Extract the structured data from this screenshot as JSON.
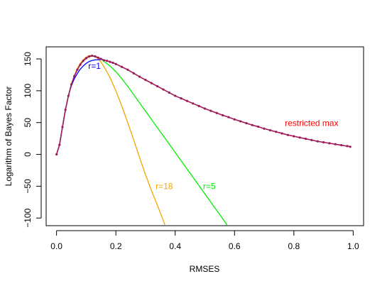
{
  "chart_data": {
    "type": "line",
    "xlabel": "RMSES",
    "ylabel": "Logarithm of Bayes Factor",
    "xlim": [
      -0.035,
      1.035
    ],
    "ylim": [
      -112,
      169
    ],
    "x_ticks": [
      0.0,
      0.2,
      0.4,
      0.6,
      0.8,
      1.0
    ],
    "x_tick_labels": [
      "0.0",
      "0.2",
      "0.4",
      "0.6",
      "0.8",
      "1.0"
    ],
    "y_ticks": [
      -100,
      -50,
      0,
      50,
      100,
      150
    ],
    "y_tick_labels": [
      "−100",
      "−50",
      "0",
      "50",
      "100",
      "150"
    ],
    "grid": false,
    "series": [
      {
        "name": "restricted max",
        "color": "#9E1A5A",
        "markers": true,
        "x": [
          0.0,
          0.01,
          0.02,
          0.03,
          0.04,
          0.05,
          0.06,
          0.07,
          0.08,
          0.09,
          0.1,
          0.11,
          0.12,
          0.13,
          0.14,
          0.15,
          0.16,
          0.17,
          0.18,
          0.19,
          0.2,
          0.22,
          0.24,
          0.26,
          0.28,
          0.3,
          0.32,
          0.34,
          0.36,
          0.38,
          0.4,
          0.42,
          0.44,
          0.46,
          0.48,
          0.5,
          0.52,
          0.54,
          0.56,
          0.58,
          0.6,
          0.62,
          0.64,
          0.66,
          0.68,
          0.7,
          0.72,
          0.74,
          0.76,
          0.78,
          0.8,
          0.82,
          0.84,
          0.86,
          0.88,
          0.9,
          0.92,
          0.94,
          0.96,
          0.98,
          0.99
        ],
        "y": [
          0.0,
          15.0,
          43.0,
          70.0,
          92.0,
          110.0,
          123.0,
          133.0,
          141.0,
          147.0,
          151.0,
          154.0,
          155.0,
          154.0,
          152.0,
          150.0,
          148.0,
          147.0,
          145.5,
          144.0,
          142.0,
          137.5,
          133.0,
          127.5,
          122.0,
          117.0,
          112.0,
          107.0,
          102.0,
          97.0,
          92.0,
          88.0,
          84.0,
          80.0,
          76.0,
          72.0,
          68.5,
          65.0,
          61.5,
          58.5,
          55.0,
          52.0,
          49.0,
          46.0,
          43.5,
          40.5,
          38.0,
          35.5,
          33.0,
          30.5,
          28.5,
          26.5,
          24.5,
          22.5,
          20.5,
          19.0,
          17.5,
          16.0,
          14.5,
          13.0,
          12.0
        ]
      },
      {
        "name": "r=1",
        "color": "#0000FF",
        "x": [
          0.0,
          0.01,
          0.02,
          0.03,
          0.04,
          0.05,
          0.06,
          0.07,
          0.08,
          0.09,
          0.1,
          0.11,
          0.12,
          0.13,
          0.14,
          0.15
        ],
        "y": [
          0.0,
          15.0,
          43.0,
          70.0,
          92.0,
          108.0,
          119.0,
          127.0,
          134.0,
          139.0,
          143.0,
          146.0,
          147.5,
          148.5,
          148.8,
          149.0
        ]
      },
      {
        "name": "r=5",
        "color": "#00EE00",
        "x": [
          0.0,
          0.01,
          0.02,
          0.03,
          0.04,
          0.05,
          0.06,
          0.07,
          0.08,
          0.09,
          0.1,
          0.11,
          0.12,
          0.13,
          0.14,
          0.15,
          0.16,
          0.18,
          0.2,
          0.22,
          0.24,
          0.26,
          0.28,
          0.3,
          0.32,
          0.34,
          0.36,
          0.38,
          0.4,
          0.42,
          0.44,
          0.46,
          0.48,
          0.5,
          0.52,
          0.54,
          0.56,
          0.575
        ],
        "y": [
          0.0,
          15.0,
          43.0,
          70.0,
          92.0,
          110.0,
          123.0,
          133.0,
          141.0,
          147.0,
          151.0,
          153.5,
          154.5,
          154.0,
          152.5,
          150.0,
          146.0,
          139.0,
          130.0,
          119.0,
          107.0,
          94.0,
          81.0,
          68.0,
          55.0,
          42.0,
          29.0,
          16.0,
          3.0,
          -10.0,
          -23.0,
          -36.0,
          -49.0,
          -62.0,
          -75.0,
          -88.0,
          -101.0,
          -111.0
        ]
      },
      {
        "name": "r=18",
        "color": "#F5A500",
        "x": [
          0.0,
          0.01,
          0.02,
          0.03,
          0.04,
          0.05,
          0.06,
          0.07,
          0.08,
          0.09,
          0.1,
          0.11,
          0.12,
          0.13,
          0.14,
          0.15,
          0.16,
          0.18,
          0.2,
          0.22,
          0.24,
          0.26,
          0.28,
          0.3,
          0.32,
          0.34,
          0.36,
          0.365
        ],
        "y": [
          0.0,
          15.0,
          43.0,
          70.0,
          92.0,
          110.0,
          124.0,
          135.0,
          143.0,
          149.0,
          153.0,
          155.0,
          155.5,
          154.0,
          150.5,
          145.0,
          138.0,
          121.0,
          100.0,
          76.0,
          50.0,
          23.0,
          -5.0,
          -32.0,
          -57.0,
          -80.0,
          -104.0,
          -111.0
        ]
      }
    ],
    "annotations": [
      {
        "text": "r=1",
        "x": 0.128,
        "y": 138,
        "color": "#0000FF"
      },
      {
        "text": "r=18",
        "x": 0.363,
        "y": -51,
        "color": "#F5A500"
      },
      {
        "text": "r=5",
        "x": 0.515,
        "y": -51,
        "color": "#00EE00"
      },
      {
        "text": "restricted max",
        "x": 0.86,
        "y": 48,
        "color": "#FF0000"
      }
    ]
  }
}
